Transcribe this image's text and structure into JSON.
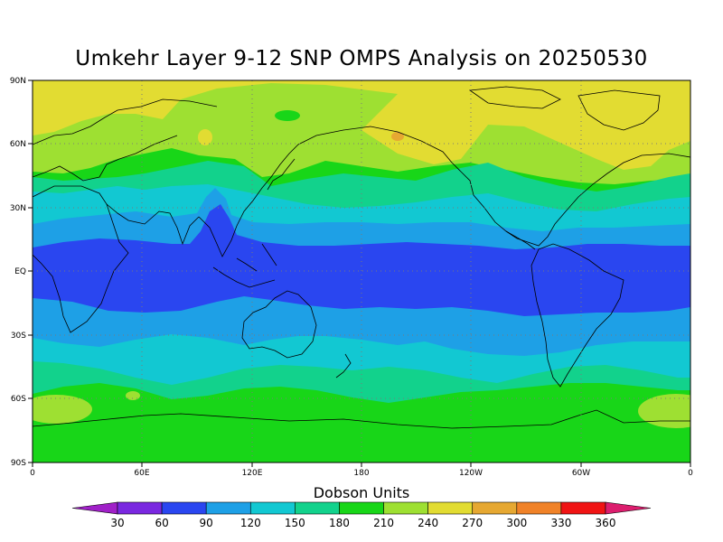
{
  "title": "Umkehr Layer 9-12 SNP OMPS Analysis on 20250530",
  "lat_ticks": [
    "90N",
    "60N",
    "30N",
    "EQ",
    "30S",
    "60S",
    "90S"
  ],
  "lon_ticks": [
    "0",
    "60E",
    "120E",
    "180",
    "120W",
    "60W",
    "0"
  ],
  "colorbar": {
    "label": "Dobson Units",
    "ticks": [
      "30",
      "60",
      "90",
      "120",
      "150",
      "180",
      "210",
      "240",
      "270",
      "300",
      "330",
      "360"
    ],
    "colors": [
      "#a020c8",
      "#7a28e0",
      "#2a46f0",
      "#1ea0e6",
      "#12c8d2",
      "#12d28c",
      "#18d618",
      "#9ee032",
      "#e2dc32",
      "#e6a832",
      "#f08228",
      "#f01414",
      "#dc1e6e"
    ]
  },
  "chart_data": {
    "type": "map",
    "projection": "equirectangular",
    "lon_range": [
      0,
      360
    ],
    "lat_range": [
      -90,
      90
    ],
    "quantity": "Umkehr Layer 9-12 ozone",
    "units": "Dobson Units",
    "zonal_bands": [
      {
        "lat_from": 90,
        "lat_to": 65,
        "value_range": "240-270"
      },
      {
        "lat_from": 65,
        "lat_to": 47,
        "value_range": "210-240"
      },
      {
        "lat_from": 47,
        "lat_to": 38,
        "value_range": "180-210"
      },
      {
        "lat_from": 38,
        "lat_to": 28,
        "value_range": "150-180"
      },
      {
        "lat_from": 28,
        "lat_to": 13,
        "value_range": "90-120"
      },
      {
        "lat_from": 13,
        "lat_to": -18,
        "value_range": "60-90"
      },
      {
        "lat_from": -18,
        "lat_to": -28,
        "value_range": "90-120"
      },
      {
        "lat_from": -28,
        "lat_to": -40,
        "value_range": "120-150"
      },
      {
        "lat_from": -40,
        "lat_to": -50,
        "value_range": "150-180"
      },
      {
        "lat_from": -50,
        "lat_to": -90,
        "value_range": "180-210"
      }
    ]
  }
}
